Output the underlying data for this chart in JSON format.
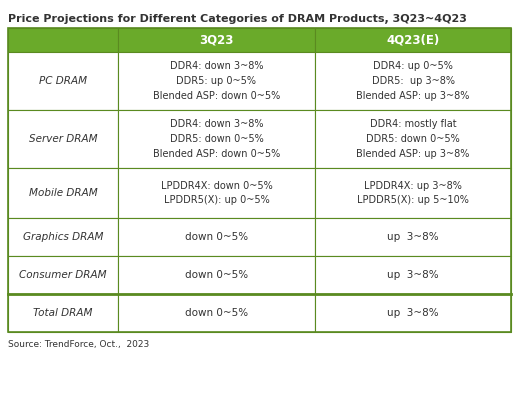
{
  "title": "Price Projections for Different Categories of DRAM Products, 3Q23~4Q23",
  "header_color": "#6aaa2a",
  "header_text_color": "#ffffff",
  "border_color": "#5a8a20",
  "cell_bg_color": "#ffffff",
  "outer_bg_color": "#ffffff",
  "text_color": "#333333",
  "source_text": "Source: TrendForce, Oct.,  2023",
  "col_headers": [
    "3Q23",
    "4Q23(E)"
  ],
  "row_headers": [
    "PC DRAM",
    "Server DRAM",
    "Mobile DRAM",
    "Graphics DRAM",
    "Consumer DRAM",
    "Total DRAM"
  ],
  "cell_data": [
    [
      "DDR4: down 3~8%\nDDR5: up 0~5%\nBlended ASP: down 0~5%",
      "DDR4: up 0~5%\nDDR5:  up 3~8%\nBlended ASP: up 3~8%"
    ],
    [
      "DDR4: down 3~8%\nDDR5: down 0~5%\nBlended ASP: down 0~5%",
      "DDR4: mostly flat\nDDR5: down 0~5%\nBlended ASP: up 3~8%"
    ],
    [
      "LPDDR4X: down 0~5%\nLPDDR5(X): up 0~5%",
      "LPDDR4X: up 3~8%\nLPDDR5(X): up 5~10%"
    ],
    [
      "down 0~5%",
      "up  3~8%"
    ],
    [
      "down 0~5%",
      "up  3~8%"
    ],
    [
      "down 0~5%",
      "up  3~8%"
    ]
  ],
  "figsize": [
    5.19,
    4.01
  ],
  "dpi": 100,
  "title_fontsize": 8.0,
  "header_fontsize": 8.5,
  "cell_fontsize_multi": 7.0,
  "cell_fontsize_single": 7.5,
  "row_header_fontsize": 7.5
}
